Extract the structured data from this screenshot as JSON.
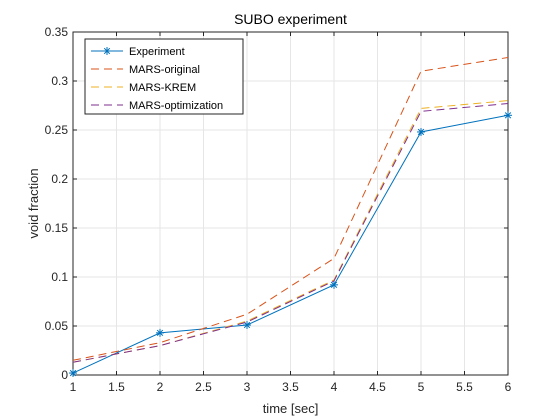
{
  "chart_data": {
    "type": "line",
    "title": "SUBO experiment",
    "xlabel": "time [sec]",
    "ylabel": "void fraction",
    "xlim": [
      1,
      6
    ],
    "ylim": [
      0,
      0.35
    ],
    "x_ticks": [
      1,
      1.5,
      2,
      2.5,
      3,
      3.5,
      4,
      4.5,
      5,
      5.5,
      6
    ],
    "y_ticks": [
      0,
      0.05,
      0.1,
      0.15,
      0.2,
      0.25,
      0.3,
      0.35
    ],
    "x_tick_labels": [
      "1",
      "1.5",
      "2",
      "2.5",
      "3",
      "3.5",
      "4",
      "4.5",
      "5",
      "5.5",
      "6"
    ],
    "y_tick_labels": [
      "0",
      "0.05",
      "0.1",
      "0.15",
      "0.2",
      "0.25",
      "0.3",
      "0.35"
    ],
    "grid": true,
    "legend_position": "top-left",
    "series": [
      {
        "name": "Experiment",
        "color": "#0072BD",
        "style": "solid",
        "marker": "asterisk",
        "x": [
          1,
          2,
          3,
          4,
          5,
          6
        ],
        "y": [
          0.002,
          0.043,
          0.051,
          0.092,
          0.248,
          0.265
        ]
      },
      {
        "name": "MARS-original",
        "color": "#D95319",
        "style": "dashed",
        "marker": "none",
        "x": [
          1,
          2,
          3,
          4,
          5,
          6
        ],
        "y": [
          0.015,
          0.033,
          0.062,
          0.119,
          0.31,
          0.324
        ]
      },
      {
        "name": "MARS-KREM",
        "color": "#EDB120",
        "style": "dashed",
        "marker": "none",
        "x": [
          1,
          2,
          3,
          4,
          5,
          6
        ],
        "y": [
          0.013,
          0.03,
          0.055,
          0.097,
          0.272,
          0.28
        ]
      },
      {
        "name": "MARS-optimization",
        "color": "#7E2F8E",
        "style": "dashed",
        "marker": "none",
        "x": [
          1,
          2,
          3,
          4,
          5,
          6
        ],
        "y": [
          0.013,
          0.03,
          0.054,
          0.096,
          0.269,
          0.277
        ]
      }
    ]
  }
}
